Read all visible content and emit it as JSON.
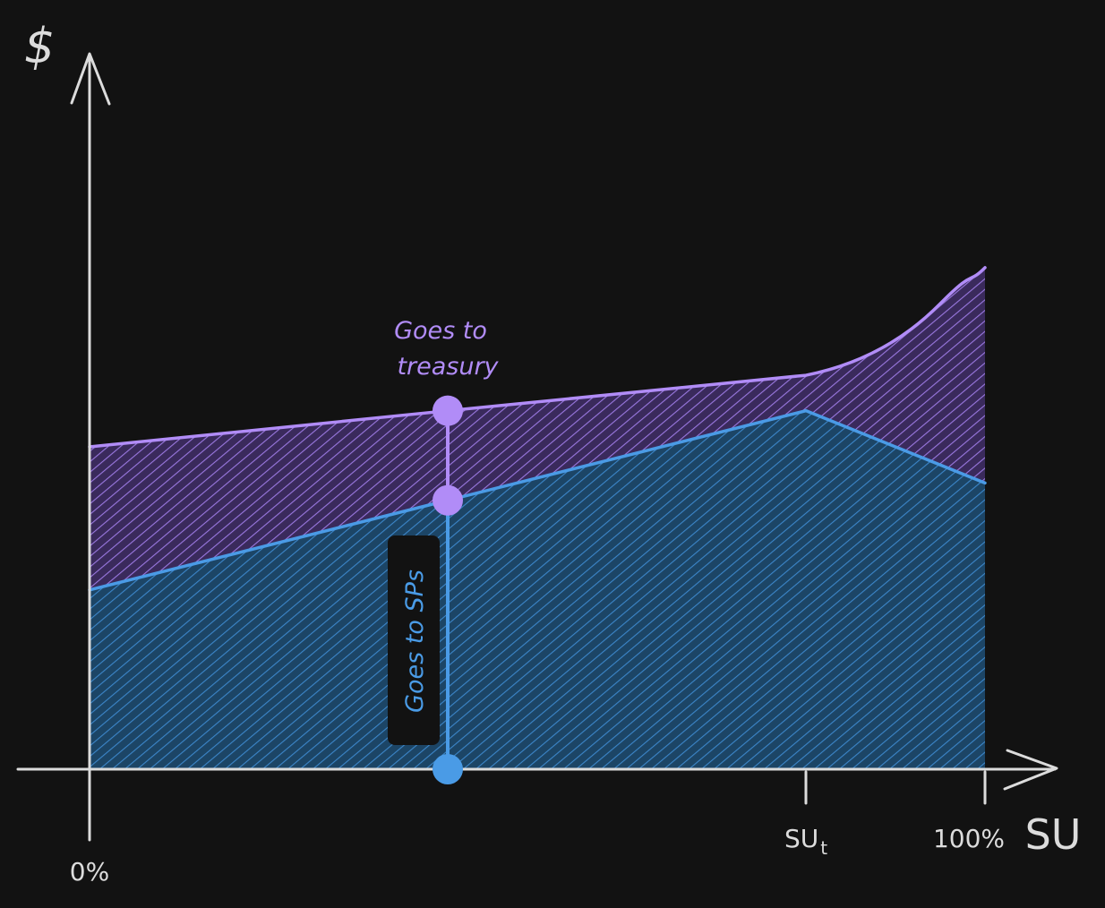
{
  "chart_data": {
    "type": "area",
    "ylabel": "$",
    "xlabel": "SU",
    "x_ticks": [
      {
        "value": 0,
        "label": "0%"
      },
      {
        "value": 80,
        "label": "SU",
        "subscript": "t"
      },
      {
        "value": 100,
        "label": "100%"
      }
    ],
    "xlim": [
      0,
      100
    ],
    "ylim": [
      0,
      100
    ],
    "grid": false,
    "series": [
      {
        "name": "",
        "color": "#b18cf7",
        "x": [
          0,
          40,
          80,
          90,
          95,
          100
        ],
        "y": [
          50.0,
          55.6,
          61.1,
          66.0,
          72.2,
          77.8
        ]
      },
      {
        "name": "",
        "color": "#4a9be6",
        "x": [
          0,
          40,
          80,
          100
        ],
        "y": [
          27.8,
          41.7,
          55.6,
          44.4
        ]
      }
    ],
    "marker": {
      "x": 40,
      "points": [
        {
          "y": 55.6,
          "color": "#b18cf7"
        },
        {
          "y": 41.7,
          "color": "#b18cf7"
        },
        {
          "y": 0,
          "color": "#4a9be6"
        }
      ]
    },
    "annotations": [
      {
        "text": "Goes to",
        "text2": "treasury",
        "color": "#b18cf7"
      },
      {
        "text": "Goes to SPs",
        "color": "#4a9be6"
      }
    ]
  }
}
